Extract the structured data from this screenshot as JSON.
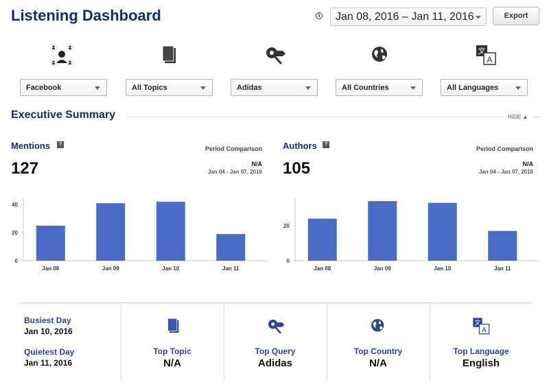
{
  "header": {
    "title": "Listening Dashboard",
    "info_icon": "info-icon",
    "date_range": "Jan 08, 2016 – Jan 11, 2016",
    "export_label": "Export"
  },
  "filters": [
    {
      "icon": "people-network-icon",
      "value": "Facebook"
    },
    {
      "icon": "documents-icon",
      "value": "All Topics"
    },
    {
      "icon": "search-tag-icon",
      "value": "Adidas"
    },
    {
      "icon": "globe-icon",
      "value": "All Countries"
    },
    {
      "icon": "translate-icon",
      "value": "All Languages"
    }
  ],
  "summary": {
    "title": "Executive Summary",
    "hide_label": "HIDE ▲"
  },
  "mentions": {
    "title": "Mentions",
    "value": "127",
    "pc_label": "Period Comparison",
    "pc_value": "N/A",
    "pc_range": "Jan 04 - Jan 07, 2016"
  },
  "authors": {
    "title": "Authors",
    "value": "105",
    "pc_label": "Period Comparison",
    "pc_value": "N/A",
    "pc_range": "Jan 04 - Jan 07, 2016"
  },
  "chart_data": [
    {
      "type": "bar",
      "categories": [
        "Jan 08",
        "Jan 09",
        "Jan 10",
        "Jan 11"
      ],
      "values": [
        25,
        41,
        42,
        19
      ],
      "yticks": [
        0,
        20,
        40
      ],
      "ylim": [
        0,
        45
      ],
      "color": "#4a6cc4",
      "title": "",
      "xlabel": "",
      "ylabel": ""
    },
    {
      "type": "bar",
      "categories": [
        "Jan 08",
        "Jan 09",
        "Jan 10",
        "Jan 11"
      ],
      "values": [
        24,
        34,
        33,
        17
      ],
      "yticks": [
        0,
        20
      ],
      "ylim": [
        0,
        36
      ],
      "color": "#4a6cc4",
      "title": "",
      "xlabel": "",
      "ylabel": ""
    }
  ],
  "bottom": {
    "busiest_label": "Busiest Day",
    "busiest_value": "Jan 10, 2016",
    "quietest_label": "Quietest Day",
    "quietest_value": "Jan 11, 2016",
    "stats": [
      {
        "icon": "documents-icon",
        "label": "Top Topic",
        "value": "N/A"
      },
      {
        "icon": "search-tag-icon",
        "label": "Top Query",
        "value": "Adidas"
      },
      {
        "icon": "globe-icon",
        "label": "Top Country",
        "value": "N/A"
      },
      {
        "icon": "translate-icon",
        "label": "Top Language",
        "value": "English"
      }
    ]
  },
  "colors": {
    "title": "#13297a",
    "accent": "#2c4597",
    "bar": "#4a6cc4"
  }
}
